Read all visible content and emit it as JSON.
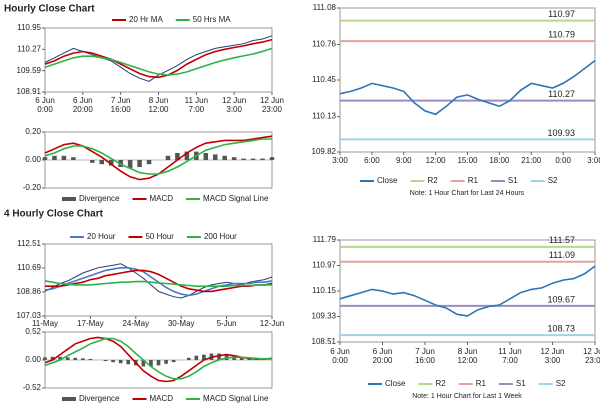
{
  "chart_data": [
    {
      "type": "line",
      "title": "Hourly Close Chart",
      "legend": "top",
      "categories": [
        [
          "6 Jun",
          "0:00"
        ],
        null,
        null,
        null,
        [
          "6 Jun",
          "20:00"
        ],
        null,
        null,
        null,
        [
          "7 Jun",
          "16:00"
        ],
        null,
        null,
        null,
        [
          "8 Jun",
          "12:00"
        ],
        null,
        null,
        null,
        [
          "11 Jun",
          "7:00"
        ],
        null,
        null,
        null,
        [
          "12 Jun",
          "3:00"
        ],
        null,
        null,
        null,
        [
          "12 Jun",
          "23:00"
        ]
      ],
      "ylim": [
        108.91,
        110.95
      ],
      "yticks": [
        108.91,
        109.59,
        110.27,
        110.95
      ],
      "series": [
        {
          "color": "#1f3e7a",
          "values": [
            109.85,
            110.0,
            110.15,
            110.3,
            110.2,
            110.1,
            110.0,
            109.9,
            109.7,
            109.5,
            109.35,
            109.25,
            109.45,
            109.6,
            109.75,
            109.95,
            110.1,
            110.2,
            110.3,
            110.35,
            110.4,
            110.45,
            110.55,
            110.6,
            110.7
          ]
        },
        {
          "name": "20 Hr MA",
          "color": "#c00000",
          "values": [
            109.8,
            109.9,
            110.05,
            110.15,
            110.2,
            110.15,
            110.05,
            109.95,
            109.8,
            109.65,
            109.5,
            109.4,
            109.38,
            109.45,
            109.6,
            109.8,
            109.95,
            110.1,
            110.2,
            110.27,
            110.33,
            110.38,
            110.45,
            110.5,
            110.58
          ]
        },
        {
          "name": "50 Hrs MA",
          "color": "#2db34a",
          "values": [
            109.7,
            109.8,
            109.9,
            110.0,
            110.05,
            110.05,
            110.0,
            109.95,
            109.85,
            109.75,
            109.65,
            109.55,
            109.48,
            109.45,
            109.48,
            109.55,
            109.65,
            109.75,
            109.85,
            109.93,
            110.0,
            110.06,
            110.12,
            110.2,
            110.3
          ]
        }
      ]
    },
    {
      "type": "combo",
      "legend": "bottom",
      "ylim": [
        -0.2,
        0.2
      ],
      "yticks": [
        {
          "value": -0.2,
          "label": "-0.20"
        },
        {
          "value": 0,
          "label": "0.00"
        },
        {
          "value": 0.2,
          "label": "0.20"
        }
      ],
      "series": [
        {
          "name": "Divergence",
          "kind": "bar",
          "color": "#555555",
          "values": [
            0.02,
            0.03,
            0.03,
            0.02,
            0.0,
            -0.02,
            -0.03,
            -0.04,
            -0.05,
            -0.06,
            -0.05,
            -0.03,
            0.0,
            0.03,
            0.05,
            0.06,
            0.06,
            0.05,
            0.04,
            0.03,
            0.02,
            0.01,
            0.01,
            0.01,
            0.02
          ]
        },
        {
          "name": "MACD",
          "color": "#c00000",
          "values": [
            0.05,
            0.08,
            0.11,
            0.12,
            0.1,
            0.06,
            0.02,
            -0.03,
            -0.08,
            -0.12,
            -0.14,
            -0.13,
            -0.1,
            -0.05,
            0.0,
            0.05,
            0.09,
            0.12,
            0.13,
            0.14,
            0.14,
            0.14,
            0.15,
            0.16,
            0.17
          ]
        },
        {
          "name": "MACD Signal Line",
          "color": "#2db34a",
          "values": [
            0.03,
            0.05,
            0.08,
            0.1,
            0.1,
            0.08,
            0.05,
            0.01,
            -0.03,
            -0.06,
            -0.09,
            -0.1,
            -0.1,
            -0.08,
            -0.05,
            -0.01,
            0.03,
            0.07,
            0.09,
            0.11,
            0.12,
            0.13,
            0.14,
            0.15,
            0.15
          ]
        }
      ]
    },
    {
      "type": "line",
      "legend": "bottom",
      "note": "Note: 1 Hour Chart for Last 24 Hours",
      "categories": [
        "3:00",
        null,
        null,
        "6:00",
        null,
        null,
        "9:00",
        null,
        null,
        "12:00",
        null,
        null,
        "15:00",
        null,
        null,
        "18:00",
        null,
        null,
        "21:00",
        null,
        null,
        "0:00",
        null,
        null,
        "3:00"
      ],
      "ylim": [
        109.82,
        111.08
      ],
      "yticks": [
        109.82,
        110.13,
        110.45,
        110.76,
        111.08
      ],
      "series": [
        {
          "name": "Close",
          "color": "#2e75b6",
          "values": [
            110.33,
            110.35,
            110.38,
            110.42,
            110.4,
            110.38,
            110.35,
            110.25,
            110.18,
            110.15,
            110.22,
            110.3,
            110.32,
            110.28,
            110.25,
            110.22,
            110.27,
            110.36,
            110.42,
            110.4,
            110.38,
            110.42,
            110.48,
            110.55,
            110.62
          ]
        }
      ],
      "levels": [
        {
          "name": "R2",
          "value": 110.97,
          "color": "#b5d88a"
        },
        {
          "name": "R1",
          "value": 110.79,
          "color": "#e6a0a0"
        },
        {
          "name": "S1",
          "value": 110.27,
          "color": "#9a8cc2"
        },
        {
          "name": "S2",
          "value": 109.93,
          "color": "#9ed3ea"
        }
      ]
    },
    {
      "type": "line",
      "title": "4 Hourly Close Chart",
      "legend": "top",
      "categories": [
        "11-May",
        null,
        null,
        null,
        null,
        null,
        "17-May",
        null,
        null,
        null,
        null,
        null,
        "24-May",
        null,
        null,
        null,
        null,
        null,
        "30-May",
        null,
        null,
        null,
        null,
        null,
        "5-Jun",
        null,
        null,
        null,
        null,
        null,
        "12-Jun"
      ],
      "ylim": [
        107.03,
        112.51
      ],
      "yticks": [
        107.03,
        108.86,
        110.69,
        112.51
      ],
      "series": [
        {
          "color": "#1f3e7a",
          "values": [
            108.9,
            109.2,
            109.5,
            109.7,
            110.0,
            110.3,
            110.5,
            110.7,
            110.8,
            110.9,
            111.0,
            110.7,
            110.3,
            109.9,
            109.4,
            108.9,
            108.7,
            108.5,
            108.4,
            108.6,
            108.9,
            109.2,
            109.4,
            109.5,
            109.6,
            109.5,
            109.4,
            109.6,
            109.7,
            109.8,
            110.0
          ]
        },
        {
          "name": "20 Hour",
          "color": "#4a78c2",
          "values": [
            109.0,
            109.1,
            109.3,
            109.5,
            109.7,
            109.9,
            110.1,
            110.3,
            110.5,
            110.6,
            110.7,
            110.7,
            110.6,
            110.4,
            110.0,
            109.6,
            109.2,
            108.9,
            108.7,
            108.6,
            108.7,
            108.9,
            109.1,
            109.3,
            109.4,
            109.5,
            109.5,
            109.5,
            109.6,
            109.6,
            109.7
          ]
        },
        {
          "name": "50 Hour",
          "color": "#c00000",
          "values": [
            109.3,
            109.3,
            109.3,
            109.4,
            109.5,
            109.6,
            109.8,
            109.9,
            110.1,
            110.2,
            110.3,
            110.4,
            110.5,
            110.5,
            110.4,
            110.2,
            109.9,
            109.6,
            109.3,
            109.1,
            109.0,
            108.9,
            108.9,
            109.0,
            109.1,
            109.2,
            109.3,
            109.3,
            109.4,
            109.4,
            109.5
          ]
        },
        {
          "name": "200 Hour",
          "color": "#2db34a",
          "values": [
            109.7,
            109.6,
            109.5,
            109.45,
            109.4,
            109.4,
            109.4,
            109.45,
            109.5,
            109.55,
            109.6,
            109.6,
            109.65,
            109.65,
            109.6,
            109.55,
            109.5,
            109.45,
            109.4,
            109.35,
            109.3,
            109.3,
            109.3,
            109.3,
            109.3,
            109.35,
            109.35,
            109.35,
            109.4,
            109.4,
            109.4
          ]
        }
      ]
    },
    {
      "type": "combo",
      "legend": "bottom",
      "ylim": [
        -0.52,
        0.52
      ],
      "yticks": [
        {
          "value": -0.52,
          "label": "-0.52"
        },
        {
          "value": 0,
          "label": "0.00"
        },
        0.52
      ],
      "series": [
        {
          "name": "Divergence",
          "kind": "bar",
          "color": "#555555",
          "values": [
            0.05,
            0.06,
            0.06,
            0.05,
            0.04,
            0.03,
            0.02,
            0.0,
            -0.02,
            -0.04,
            -0.06,
            -0.08,
            -0.1,
            -0.12,
            -0.12,
            -0.1,
            -0.07,
            -0.04,
            0.0,
            0.04,
            0.08,
            0.1,
            0.12,
            0.12,
            0.1,
            0.08,
            0.06,
            0.04,
            0.02,
            0.01,
            0.0
          ]
        },
        {
          "name": "MACD",
          "color": "#c00000",
          "values": [
            -0.05,
            0.0,
            0.1,
            0.2,
            0.3,
            0.35,
            0.4,
            0.42,
            0.4,
            0.35,
            0.25,
            0.1,
            -0.05,
            -0.2,
            -0.3,
            -0.38,
            -0.4,
            -0.38,
            -0.3,
            -0.2,
            -0.1,
            0.0,
            0.05,
            0.08,
            0.1,
            0.08,
            0.05,
            0.03,
            0.02,
            0.02,
            0.03
          ]
        },
        {
          "name": "MACD Signal Line",
          "color": "#2db34a",
          "values": [
            -0.1,
            -0.05,
            0.0,
            0.08,
            0.15,
            0.22,
            0.3,
            0.35,
            0.4,
            0.4,
            0.35,
            0.25,
            0.12,
            0.0,
            -0.12,
            -0.22,
            -0.3,
            -0.35,
            -0.35,
            -0.3,
            -0.22,
            -0.12,
            -0.05,
            0.0,
            0.04,
            0.05,
            0.05,
            0.04,
            0.03,
            0.02,
            0.02
          ]
        }
      ]
    },
    {
      "type": "line",
      "legend": "bottom",
      "note": "Note: 1 Hour Chart for Last 1 Week",
      "categories": [
        [
          "6 Jun",
          "0:00"
        ],
        null,
        null,
        null,
        [
          "6 Jun",
          "20:00"
        ],
        null,
        null,
        null,
        [
          "7 Jun",
          "16:00"
        ],
        null,
        null,
        null,
        [
          "8 Jun",
          "12:00"
        ],
        null,
        null,
        null,
        [
          "11 Jun",
          "7:00"
        ],
        null,
        null,
        null,
        [
          "12 Jun",
          "3:00"
        ],
        null,
        null,
        null,
        [
          "12 Jun",
          "23:00"
        ]
      ],
      "ylim": [
        108.51,
        111.79
      ],
      "yticks": [
        108.51,
        109.33,
        110.15,
        110.97,
        111.79
      ],
      "series": [
        {
          "name": "Close",
          "color": "#2e75b6",
          "values": [
            109.9,
            110.0,
            110.1,
            110.2,
            110.15,
            110.05,
            110.1,
            110.0,
            109.85,
            109.7,
            109.6,
            109.4,
            109.35,
            109.55,
            109.65,
            109.7,
            109.9,
            110.1,
            110.2,
            110.25,
            110.4,
            110.5,
            110.55,
            110.7,
            110.95
          ]
        }
      ],
      "levels": [
        {
          "name": "R2",
          "value": 111.57,
          "color": "#b5d88a"
        },
        {
          "name": "R1",
          "value": 111.09,
          "color": "#e6a0a0"
        },
        {
          "name": "S1",
          "value": 109.67,
          "color": "#9a8cc2"
        },
        {
          "name": "S2",
          "value": 108.73,
          "color": "#9ed3ea"
        }
      ]
    }
  ]
}
